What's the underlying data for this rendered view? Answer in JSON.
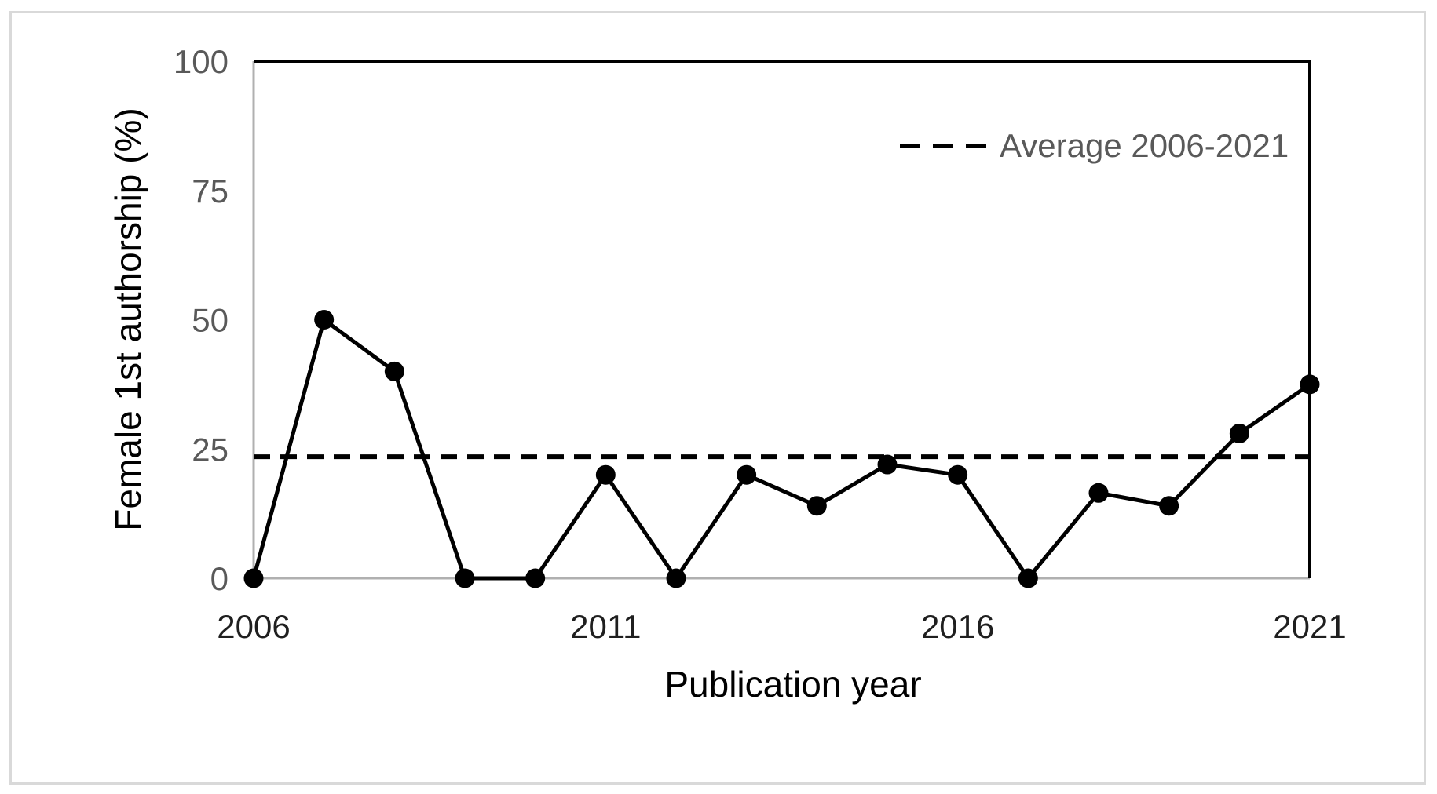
{
  "chart_data": {
    "type": "line",
    "title": "",
    "xlabel": "Publication year",
    "ylabel": "Female 1st authorship (%)",
    "xlim": [
      2006,
      2021
    ],
    "ylim": [
      0,
      100
    ],
    "x_ticks": [
      "2006",
      "2011",
      "2016",
      "2021"
    ],
    "y_ticks": [
      "0",
      "25",
      "50",
      "75",
      "100"
    ],
    "grid": false,
    "legend_position": "top-right-inside",
    "series": [
      {
        "name": "Female 1st authorship (%)",
        "x": [
          2006,
          2007,
          2008,
          2009,
          2010,
          2011,
          2012,
          2013,
          2014,
          2015,
          2016,
          2017,
          2018,
          2019,
          2020,
          2021
        ],
        "values": [
          0,
          50,
          40,
          0,
          0,
          20,
          0,
          20,
          14,
          22,
          20,
          0,
          16.5,
          14,
          28,
          37.5
        ],
        "color": "#000000",
        "marker": "circle",
        "line_style": "solid"
      }
    ],
    "average_line": {
      "label": "Average 2006-2021",
      "value": 23.5,
      "color": "#000000",
      "line_style": "dashed"
    },
    "colors": {
      "y_tick_labels": "#595959",
      "x_tick_labels": "#1f1f1f",
      "axis_titles": "#000000",
      "legend_text": "#595959",
      "axis_line_gray": "#b0b0b0",
      "frame_line_black": "#000000",
      "figure_border": "#d9d9d9",
      "background": "#ffffff"
    }
  }
}
